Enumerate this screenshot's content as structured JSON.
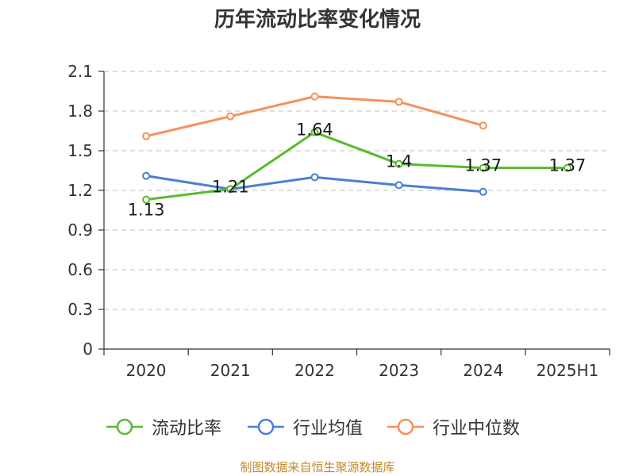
{
  "chart_data": {
    "type": "line",
    "title": "历年流动比率变化情况",
    "categories": [
      "2020",
      "2021",
      "2022",
      "2023",
      "2024",
      "2025H1"
    ],
    "ylim": [
      0,
      2.1
    ],
    "yticks": [
      "0",
      "0.3",
      "0.6",
      "0.9",
      "1.2",
      "1.5",
      "1.8",
      "2.1"
    ],
    "grid": true,
    "legend_position": "bottom",
    "series": [
      {
        "name": "流动比率",
        "color": "#5ab931",
        "labeled": true,
        "values": [
          1.13,
          1.21,
          1.64,
          1.4,
          1.37,
          1.37
        ]
      },
      {
        "name": "行业均值",
        "color": "#4a7fd6",
        "labeled": false,
        "values": [
          1.31,
          1.21,
          1.3,
          1.24,
          1.19,
          null
        ]
      },
      {
        "name": "行业中位数",
        "color": "#f5915a",
        "labeled": false,
        "values": [
          1.61,
          1.76,
          1.91,
          1.87,
          1.69,
          null
        ]
      }
    ]
  },
  "source": "制图数据来自恒生聚源数据库"
}
